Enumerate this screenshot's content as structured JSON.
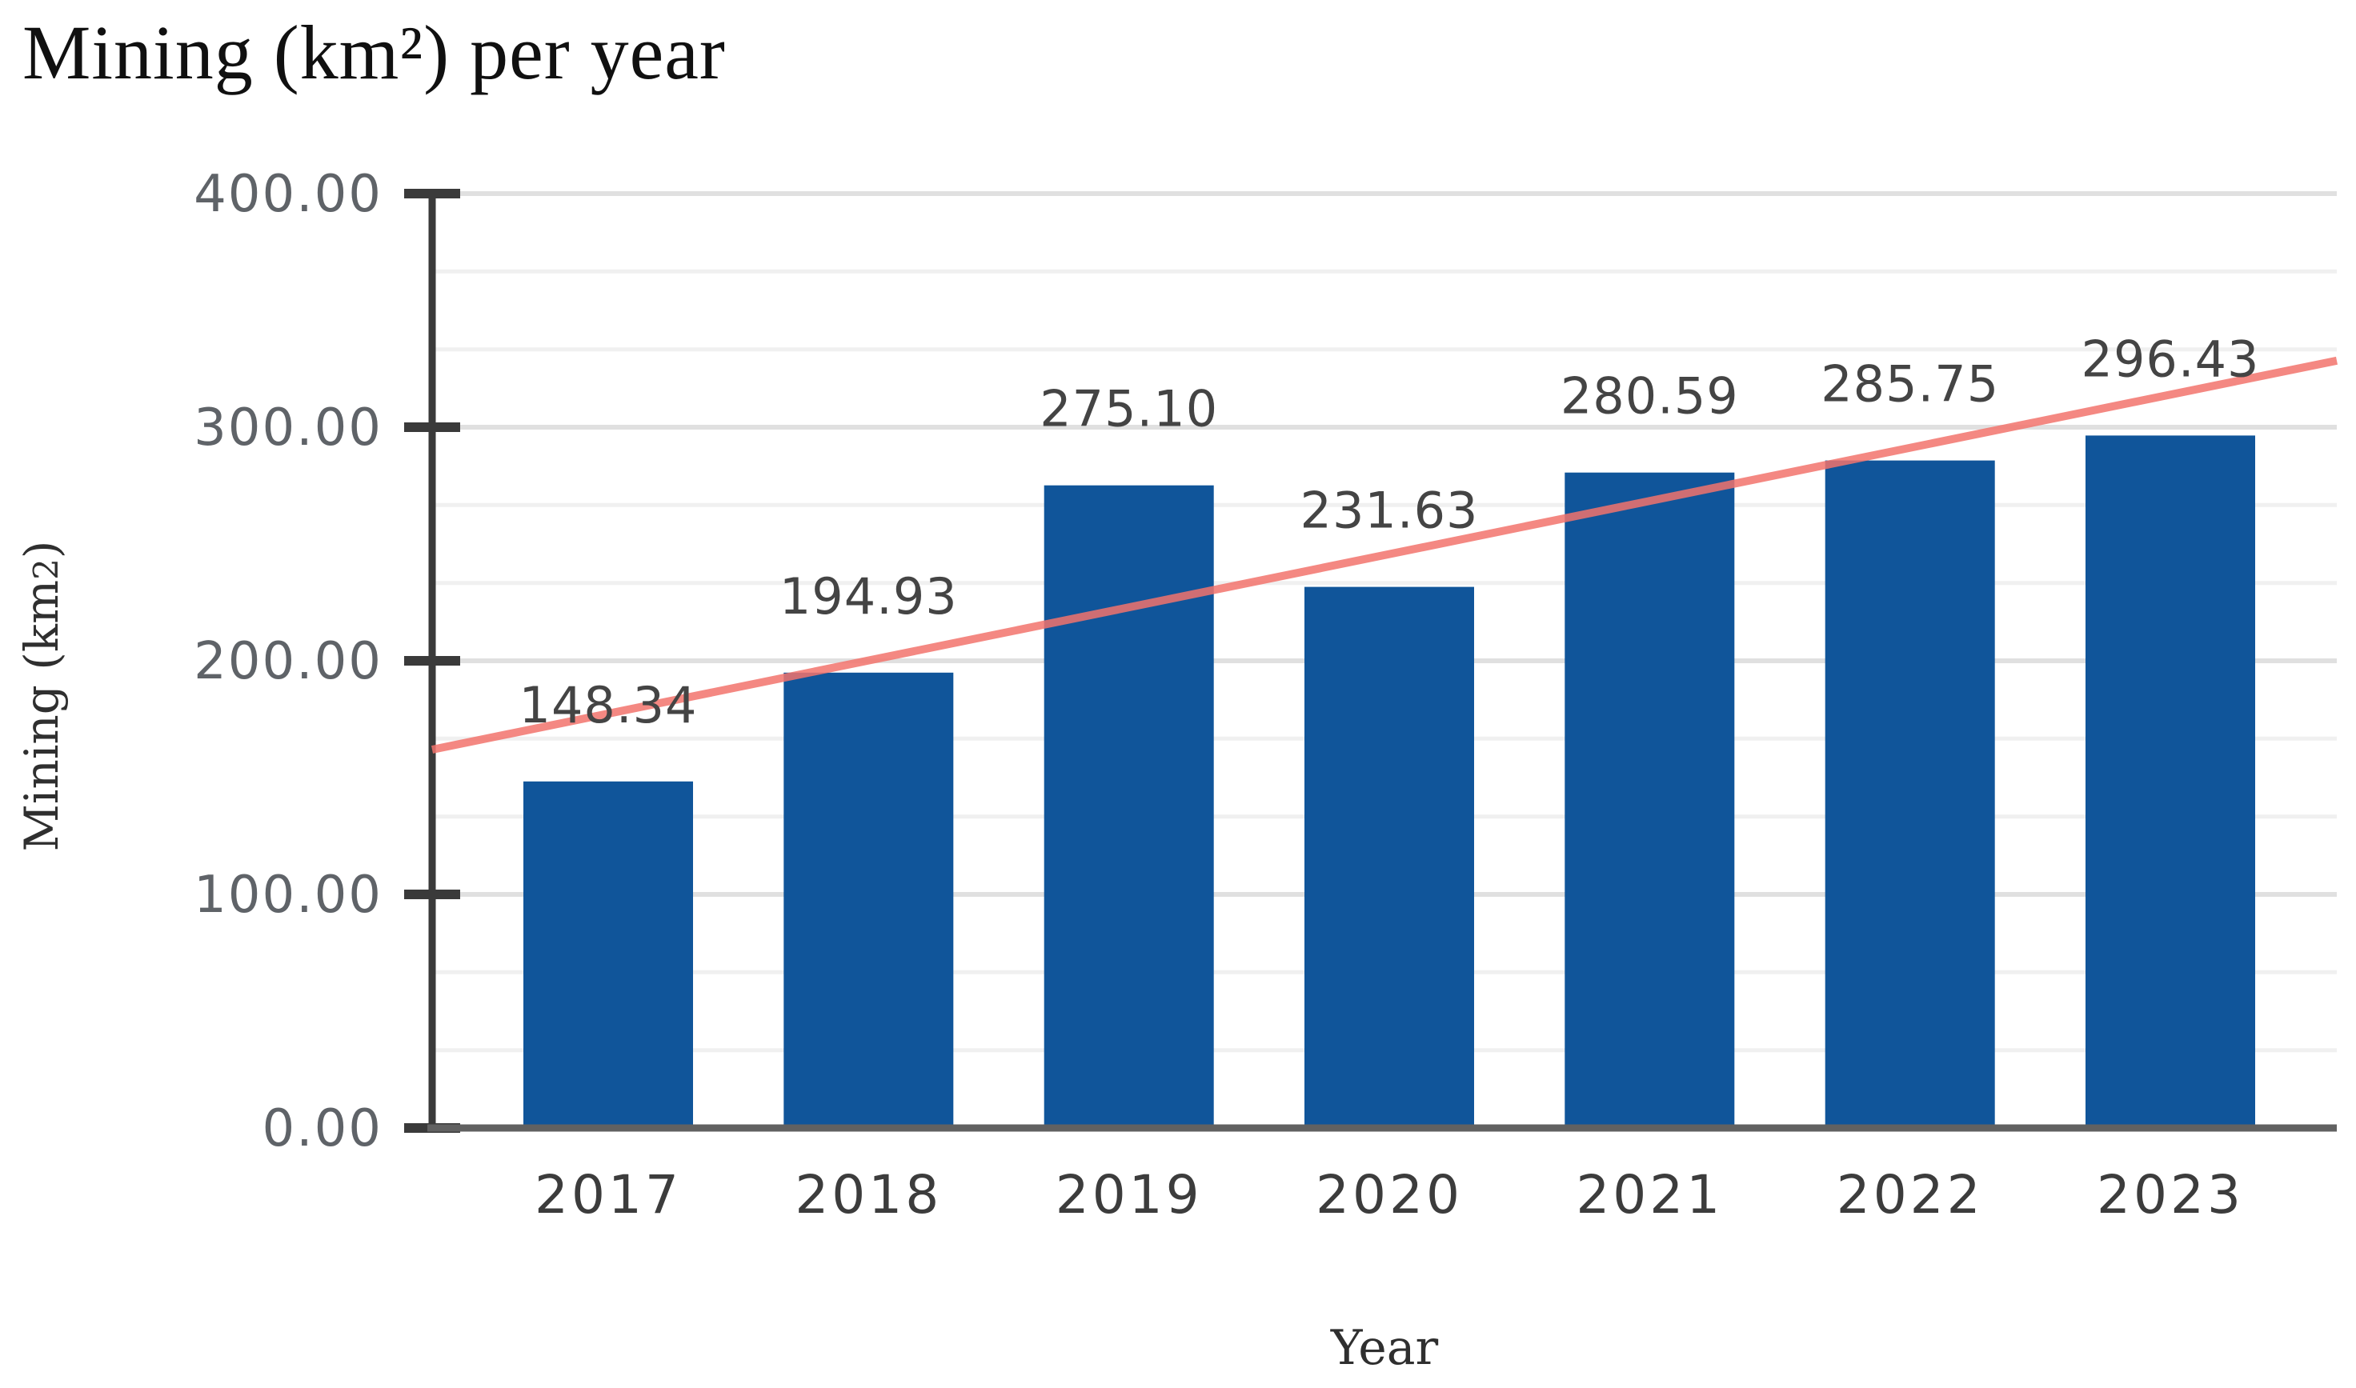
{
  "page": {
    "background": "#ffffff"
  },
  "chart_data": {
    "type": "bar",
    "title": "Mining (km²) per year",
    "xlabel": "Year",
    "ylabel": "Mining (km2)",
    "ylabel_parts": {
      "prefix": "Mining (km",
      "sub": "2",
      "suffix": ")"
    },
    "categories": [
      "2017",
      "2018",
      "2019",
      "2020",
      "2021",
      "2022",
      "2023"
    ],
    "series": [
      {
        "name": "Mining (km2)",
        "values": [
          148.34,
          194.93,
          275.1,
          231.63,
          280.59,
          285.75,
          296.43
        ],
        "color": "#10559a"
      }
    ],
    "data_labels": [
      "148.34",
      "194.93",
      "275.10",
      "231.63",
      "280.59",
      "285.75",
      "296.43"
    ],
    "y_axis": {
      "min": 0,
      "max": 400,
      "tick_values": [
        0,
        100,
        200,
        300,
        400
      ],
      "tick_labels": [
        "0.00",
        "100.00",
        "200.00",
        "300.00",
        "400.00"
      ],
      "minor_divisions_per_major": 3
    },
    "ylim": [
      0,
      400
    ],
    "grid": {
      "major": true,
      "minor": true
    },
    "legend": "none",
    "trendline": {
      "type": "linear",
      "color": "#f2736c",
      "start_value": 162,
      "end_value": 328.5
    }
  },
  "colors": {
    "bar": "#10559a",
    "trendline": "#f2736c",
    "axis": "#3a3a3a",
    "baseline": "#616161",
    "major_grid": "#e0e0e0",
    "minor_grid": "#f0f0f0",
    "tick_label": "#5f6368",
    "data_label": "#444444",
    "category_label": "#3c3c3c",
    "axis_title": "#2f2f2f",
    "title": "#101010"
  }
}
